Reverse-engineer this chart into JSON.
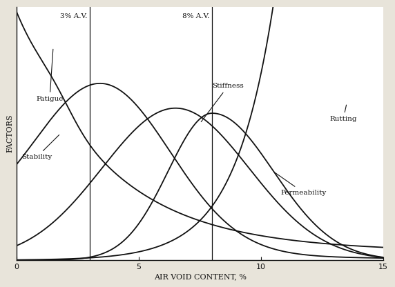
{
  "xlabel": "AIR VOID CONTENT, %",
  "ylabel": "FACTORS",
  "xlim": [
    0,
    15
  ],
  "ylim": [
    0,
    1
  ],
  "vline1_x": 3,
  "vline1_label": "3% A.V.",
  "vline2_x": 8,
  "vline2_label": "8% A.V.",
  "line_color": "#111111",
  "bg_color": "#e8e4da",
  "font_size": 7.5
}
